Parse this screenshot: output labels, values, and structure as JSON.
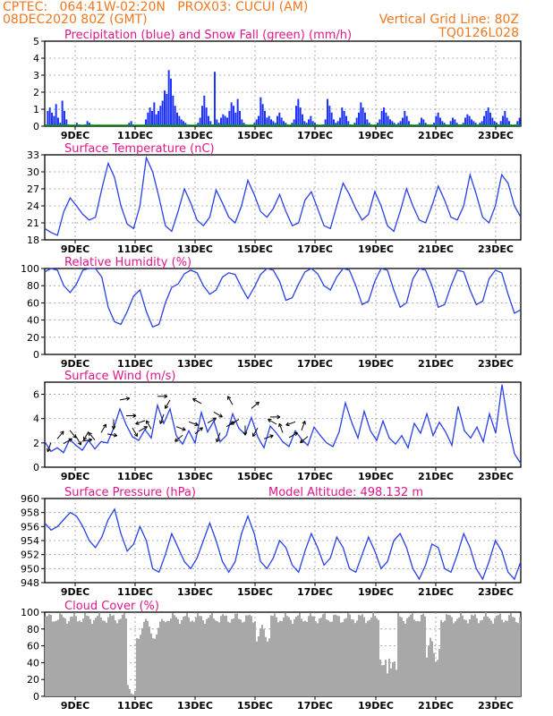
{
  "header": {
    "line1_left": "CPTEC:   064:41W-02:20N   PROX03: CUCUI (AM)",
    "line2_left": "08DEC2020 80Z (GMT)",
    "line2_right": "Vertical Grid Line: 80Z",
    "line3_right": "TQ0126L028"
  },
  "colors": {
    "header": "#f07820",
    "title": "#e0168c",
    "precip": "#1e32ff",
    "snow": "#00a000",
    "line": "#2840e6",
    "cloud": "#a8a8a8",
    "wind_arrow": "#000000"
  },
  "x_tick_labels": [
    "9DEC",
    "11DEC",
    "13DEC",
    "15DEC",
    "17DEC",
    "19DEC",
    "21DEC",
    "23DEC"
  ],
  "x_range_days": [
    "08DEC2020 80Z",
    "23DEC2020 00Z"
  ],
  "chart_data": [
    {
      "type": "bar",
      "title": "Precipitation (blue) and Snow Fall (green) (mm/h)",
      "ylim": [
        0,
        5
      ],
      "yticks": [
        "0",
        "1",
        "2",
        "3",
        "4",
        "5"
      ],
      "series": [
        {
          "name": "Precipitation",
          "values": [
            0.1,
            0.9,
            1.1,
            0.8,
            0.6,
            1.3,
            0.5,
            0.2,
            1.5,
            0.9,
            0.4,
            0.1,
            0,
            0,
            0.1,
            0.2,
            0.1,
            0,
            0,
            0.1,
            0.3,
            0.2,
            0.1,
            0,
            0,
            0,
            0.1,
            0,
            0,
            0,
            0,
            0,
            0,
            0,
            0,
            0,
            0,
            0,
            0,
            0.1,
            0.2,
            0.3,
            0.1,
            0,
            0,
            0,
            0,
            0,
            0.4,
            0.8,
            1.1,
            0.9,
            1.4,
            0.7,
            0.9,
            1.2,
            1.5,
            2.1,
            1.9,
            3.3,
            2.8,
            1.8,
            1.2,
            0.8,
            0.6,
            0.4,
            0.3,
            0.2,
            0.1,
            0,
            0,
            0,
            0.1,
            0.2,
            0.5,
            1.2,
            1.8,
            1.1,
            0.6,
            0.3,
            0.1,
            3.2,
            0.4,
            0.2,
            0.5,
            0.7,
            0.6,
            0.5,
            0.9,
            1.4,
            1.2,
            0.8,
            1.6,
            0.9,
            0.4,
            0.2,
            0.1,
            0,
            0,
            0,
            0.2,
            0.4,
            0.6,
            1.7,
            1.3,
            0.9,
            0.5,
            0.6,
            0.4,
            0.3,
            0.2,
            0.6,
            0.8,
            0.5,
            0.3,
            0.2,
            0.1,
            0,
            0.2,
            0.4,
            1.2,
            1.6,
            1.1,
            0.7,
            0.3,
            0.2,
            0.4,
            0.6,
            0.3,
            0.2,
            0.1,
            0,
            0,
            0.1,
            0.4,
            1.6,
            1.2,
            0.8,
            0.4,
            0.2,
            0.3,
            0.5,
            1.1,
            0.9,
            0.6,
            0.3,
            0.1,
            0,
            0.2,
            0.5,
            0.8,
            1.4,
            1.1,
            0.8,
            0.4,
            0.2,
            0.1,
            0,
            0.1,
            0.2,
            0.4,
            0.9,
            1.1,
            0.8,
            0.6,
            0.4,
            0.3,
            0.2,
            0.1,
            0.2,
            0.3,
            0.5,
            0.9,
            0.6,
            0.3,
            0.1,
            0,
            0,
            0.1,
            0.2,
            0.5,
            0.4,
            0.2,
            0.1,
            0,
            0.1,
            0.2,
            0.6,
            0.8,
            0.5,
            0.3,
            0.2,
            0.1,
            0,
            0.3,
            0.5,
            0.4,
            0.2,
            0.1,
            0.1,
            0.2,
            0.5,
            0.7,
            0.6,
            0.4,
            0.3,
            0.2,
            0.1,
            0.2,
            0.3,
            0.6,
            0.9,
            1.1,
            0.8,
            0.5,
            0.3,
            0.2,
            0.1,
            0.3,
            0.6,
            0.9,
            0.5,
            0.3,
            0.1,
            0,
            0.1,
            0.3,
            0.5
          ]
        },
        {
          "name": "Snow Fall",
          "values": [
            0
          ]
        }
      ]
    },
    {
      "type": "line",
      "title": "Surface Temperature (nC)",
      "ylim": [
        18,
        33
      ],
      "yticks": [
        "18",
        "21",
        "24",
        "27",
        "30",
        "33"
      ],
      "x_days": [
        0,
        0.2,
        0.4,
        0.6,
        0.8,
        1.0,
        1.2,
        1.4,
        1.6,
        1.8,
        2.0,
        2.2,
        2.4,
        2.6,
        2.8,
        3.0,
        3.2,
        3.4,
        3.6,
        3.8,
        4.0,
        4.2,
        4.4,
        4.6,
        4.8,
        5.0,
        5.2,
        5.4,
        5.6,
        5.8,
        6.0,
        6.2,
        6.4,
        6.6,
        6.8,
        7.0,
        7.2,
        7.4,
        7.6,
        7.8,
        8.0,
        8.2,
        8.4,
        8.6,
        8.8,
        9.0,
        9.2,
        9.4,
        9.6,
        9.8,
        10.0,
        10.2,
        10.4,
        10.6,
        10.8,
        11.0,
        11.2,
        11.4,
        11.6,
        11.8,
        12.0,
        12.2,
        12.4,
        12.6,
        12.8,
        13.0,
        13.2,
        13.4,
        13.6,
        13.8,
        14.0,
        14.2,
        14.4,
        14.6,
        14.8,
        15.0
      ],
      "values": [
        20,
        19.3,
        18.8,
        23,
        25.4,
        24,
        22.5,
        21.5,
        22,
        27,
        31.5,
        29,
        24,
        20.8,
        20,
        24,
        32.5,
        30,
        25.5,
        20.5,
        19.5,
        23,
        27,
        24.5,
        21.5,
        20.5,
        22,
        26.8,
        24.5,
        22,
        21,
        24,
        28.5,
        26,
        23,
        22,
        23.5,
        26,
        23,
        20.5,
        21,
        25,
        26.5,
        23.5,
        20.5,
        20,
        24,
        28,
        26,
        23.5,
        21.5,
        22.5,
        26.5,
        24,
        20.5,
        19.5,
        23,
        27,
        24,
        21.5,
        21,
        24,
        27.5,
        25,
        22,
        21.5,
        24,
        29.5,
        26,
        22,
        21,
        24,
        29.5,
        28,
        24,
        22
      ]
    },
    {
      "type": "line",
      "title": "Relative Humidity (%)",
      "ylim": [
        0,
        100
      ],
      "yticks": [
        "0",
        "20",
        "40",
        "60",
        "80",
        "100"
      ],
      "values": [
        96,
        100,
        98,
        80,
        72,
        82,
        98,
        100,
        100,
        90,
        55,
        38,
        35,
        50,
        68,
        75,
        50,
        32,
        35,
        60,
        78,
        82,
        94,
        98,
        95,
        80,
        70,
        75,
        90,
        95,
        93,
        78,
        65,
        78,
        93,
        100,
        98,
        85,
        63,
        66,
        82,
        96,
        100,
        94,
        80,
        75,
        90,
        100,
        98,
        80,
        58,
        62,
        85,
        100,
        98,
        75,
        55,
        60,
        88,
        100,
        98,
        80,
        55,
        58,
        80,
        98,
        96,
        75,
        58,
        62,
        88,
        98,
        95,
        70,
        48,
        52
      ]
    },
    {
      "type": "line",
      "title": "Surface Wind (m/s)",
      "ylim": [
        0,
        7
      ],
      "yticks": [
        "0",
        "2",
        "4",
        "6"
      ],
      "values": [
        2.1,
        1.3,
        1.6,
        1.2,
        2.3,
        1.8,
        1.4,
        2.2,
        1.5,
        2.1,
        2.0,
        3.2,
        4.8,
        3.5,
        2.5,
        2.2,
        3.1,
        2.4,
        5.1,
        3.6,
        4.8,
        2.6,
        1.9,
        3.0,
        2.0,
        4.5,
        2.9,
        3.8,
        2.1,
        2.6,
        4.4,
        3.2,
        2.7,
        4.1,
        2.5,
        1.6,
        3.4,
        2.8,
        2.1,
        1.7,
        3.0,
        2.3,
        1.8,
        3.3,
        2.6,
        2.0,
        1.7,
        2.9,
        5.3,
        3.7,
        2.4,
        4.6,
        3.0,
        2.2,
        3.8,
        2.4,
        1.9,
        2.6,
        1.6,
        3.6,
        2.8,
        4.4,
        2.6,
        3.7,
        2.9,
        1.8,
        5.0,
        3.0,
        2.4,
        3.3,
        2.1,
        4.4,
        2.8,
        6.8,
        3.5,
        1.1,
        0.3
      ]
    },
    {
      "type": "line",
      "title": "Surface Pressure (hPa)",
      "annotation": "Model Altitude: 498.132 m",
      "ylim": [
        948,
        960
      ],
      "yticks": [
        "948",
        "950",
        "952",
        "954",
        "956",
        "958",
        "960"
      ],
      "values": [
        956.5,
        955.5,
        956,
        957,
        958,
        957.5,
        956,
        954,
        953,
        954.5,
        957,
        958.5,
        955,
        952.5,
        953.5,
        956,
        954,
        950,
        949.5,
        952,
        955,
        953,
        951,
        950,
        951.5,
        954,
        956.5,
        954,
        951,
        949.5,
        951,
        955,
        957.5,
        955,
        951,
        950,
        951.5,
        954,
        953,
        950.5,
        949.5,
        952.5,
        955,
        953,
        950.5,
        951.5,
        954.5,
        953,
        950,
        949.5,
        952,
        954.5,
        952.5,
        950,
        951,
        954,
        955,
        953,
        950,
        948.5,
        950.5,
        953.5,
        953,
        950,
        949.5,
        952,
        955,
        953,
        950,
        948.5,
        951,
        954,
        952.5,
        949.5,
        948.5,
        951
      ]
    },
    {
      "type": "area",
      "title": "Cloud Cover (%)",
      "ylim": [
        0,
        100
      ],
      "yticks": [
        "0",
        "20",
        "40",
        "60",
        "80",
        "100"
      ]
    }
  ]
}
